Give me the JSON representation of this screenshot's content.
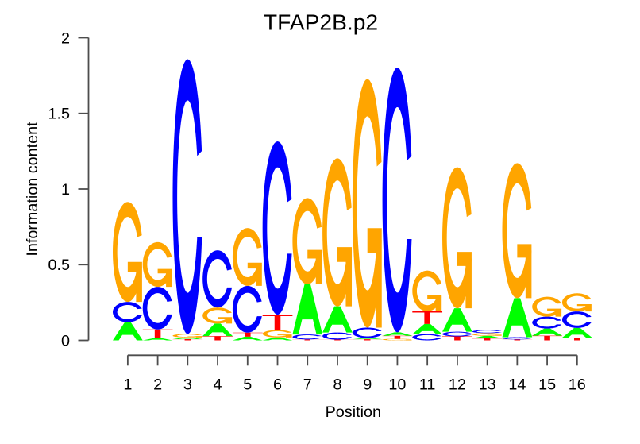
{
  "chart_data": {
    "type": "sequence_logo",
    "title": "TFAP2B.p2",
    "xlabel": "Position",
    "ylabel": "Information content",
    "ylim": [
      0,
      2
    ],
    "y_ticks": [
      0,
      0.5,
      1,
      1.5,
      2
    ],
    "x_ticks": [
      1,
      2,
      3,
      4,
      5,
      6,
      7,
      8,
      9,
      10,
      11,
      12,
      13,
      14,
      15,
      16
    ],
    "grid": false,
    "legend": null,
    "alphabet": [
      "A",
      "C",
      "G",
      "T"
    ],
    "base_colors": {
      "A": "#00FF00",
      "C": "#0000FF",
      "G": "#FFA500",
      "T": "#FF0000"
    },
    "positions": [
      {
        "position": 1,
        "letters": {
          "A": 0.12,
          "C": 0.134,
          "G": 0.661,
          "T": 0.0
        }
      },
      {
        "position": 2,
        "letters": {
          "A": 0.016,
          "C": 0.282,
          "G": 0.295,
          "T": 0.056
        }
      },
      {
        "position": 3,
        "letters": {
          "A": 0.011,
          "C": 1.816,
          "G": 0.023,
          "T": 0.008
        }
      },
      {
        "position": 4,
        "letters": {
          "A": 0.083,
          "C": 0.378,
          "G": 0.106,
          "T": 0.028
        }
      },
      {
        "position": 5,
        "letters": {
          "A": 0.024,
          "C": 0.309,
          "G": 0.382,
          "T": 0.027
        }
      },
      {
        "position": 6,
        "letters": {
          "A": 0.019,
          "C": 1.145,
          "G": 0.049,
          "T": 0.102
        }
      },
      {
        "position": 7,
        "letters": {
          "A": 0.331,
          "C": 0.033,
          "G": 0.57,
          "T": 0.006
        }
      },
      {
        "position": 8,
        "letters": {
          "A": 0.173,
          "C": 0.047,
          "G": 0.978,
          "T": 0.005
        }
      },
      {
        "position": 9,
        "letters": {
          "A": 0.009,
          "C": 0.068,
          "G": 1.643,
          "T": 0.007
        }
      },
      {
        "position": 10,
        "letters": {
          "A": 0.023,
          "C": 1.75,
          "G": 0.01,
          "T": 0.02
        }
      },
      {
        "position": 11,
        "letters": {
          "A": 0.067,
          "C": 0.041,
          "G": 0.269,
          "T": 0.084
        }
      },
      {
        "position": 12,
        "letters": {
          "A": 0.155,
          "C": 0.031,
          "G": 0.932,
          "T": 0.026
        }
      },
      {
        "position": 13,
        "letters": {
          "A": 0.017,
          "C": 0.02,
          "G": 0.018,
          "T": 0.013
        }
      },
      {
        "position": 14,
        "letters": {
          "A": 0.258,
          "C": 0.015,
          "G": 0.892,
          "T": 0.006
        }
      },
      {
        "position": 15,
        "letters": {
          "A": 0.047,
          "C": 0.079,
          "G": 0.131,
          "T": 0.031
        }
      },
      {
        "position": 16,
        "letters": {
          "A": 0.064,
          "C": 0.109,
          "G": 0.12,
          "T": 0.018
        }
      }
    ]
  },
  "colors": {
    "background": "#FFFFFF",
    "axis": "#4D4D4D",
    "text": "#000000"
  }
}
